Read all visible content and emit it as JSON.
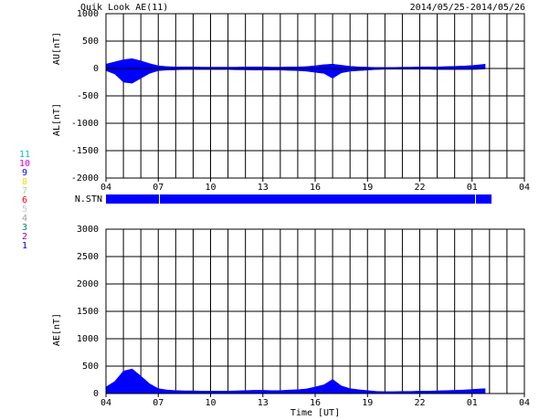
{
  "title": "Quik Look AE(11)",
  "date_range": "2014/05/25-2014/05/26",
  "nstn_label": "N.STN",
  "stations": [
    {
      "label": "11",
      "color": "#00c8c8"
    },
    {
      "label": "10",
      "color": "#e000e0"
    },
    {
      "label": "9",
      "color": "#0000ff"
    },
    {
      "label": "8",
      "color": "#f0e000"
    },
    {
      "label": "7",
      "color": "#90e090"
    },
    {
      "label": "6",
      "color": "#ff0000"
    },
    {
      "label": "5",
      "color": "#c8c8c8"
    },
    {
      "label": "4",
      "color": "#a0a0a0"
    },
    {
      "label": "3",
      "color": "#008080"
    },
    {
      "label": "2",
      "color": "#a000a0"
    },
    {
      "label": "1",
      "color": "#0000c0"
    }
  ],
  "chart_data": [
    {
      "type": "area",
      "ylabels": [
        "AU[nT]",
        "AL[nT]"
      ],
      "x": [
        4,
        4.5,
        5,
        5.5,
        6,
        6.5,
        7,
        7.5,
        8,
        8.5,
        9,
        9.5,
        10,
        10.5,
        11,
        11.5,
        12,
        12.5,
        13,
        13.5,
        14,
        14.5,
        15,
        15.5,
        16,
        16.5,
        17,
        17.5,
        18,
        18.5,
        19,
        19.5,
        20,
        20.5,
        21,
        21.5,
        22,
        22.5,
        23,
        23.5,
        24,
        24.5,
        25,
        25.5,
        25.75
      ],
      "series": [
        {
          "color": "#0000ff",
          "values": [
            80,
            120,
            160,
            180,
            140,
            90,
            50,
            35,
            30,
            30,
            30,
            25,
            25,
            25,
            25,
            25,
            30,
            30,
            30,
            25,
            25,
            30,
            30,
            35,
            50,
            70,
            80,
            60,
            40,
            30,
            25,
            20,
            20,
            20,
            25,
            25,
            30,
            30,
            30,
            35,
            40,
            45,
            55,
            70,
            80
          ]
        },
        {
          "color": "#0000ff",
          "values": [
            -40,
            -100,
            -250,
            -270,
            -180,
            -90,
            -40,
            -30,
            -25,
            -20,
            -20,
            -20,
            -20,
            -20,
            -20,
            -25,
            -25,
            -30,
            -30,
            -30,
            -30,
            -35,
            -40,
            -50,
            -70,
            -90,
            -180,
            -80,
            -50,
            -40,
            -30,
            -20,
            -15,
            -15,
            -15,
            -15,
            -15,
            -15,
            -20,
            -20,
            -20,
            -20,
            -20,
            -15,
            -10
          ]
        }
      ],
      "xlim": [
        4,
        28
      ],
      "xticks": [
        {
          "value": 4,
          "label": "04"
        },
        {
          "value": 7,
          "label": "07"
        },
        {
          "value": 10,
          "label": "10"
        },
        13,
        16,
        19,
        22,
        {
          "value": 25,
          "label": "01"
        },
        {
          "value": 28,
          "label": "04"
        }
      ],
      "ylim": [
        -2000,
        1000
      ],
      "yticks": [
        -2000,
        -1500,
        -1000,
        -500,
        0,
        500,
        1000
      ],
      "grid": true
    },
    {
      "type": "area",
      "ylabel": "AE[nT]",
      "xlabel": "Time [UT]",
      "x": [
        4,
        4.5,
        5,
        5.5,
        6,
        6.5,
        7,
        7.5,
        8,
        8.5,
        9,
        9.5,
        10,
        10.5,
        11,
        11.5,
        12,
        12.5,
        13,
        13.5,
        14,
        14.5,
        15,
        15.5,
        16,
        16.5,
        17,
        17.5,
        18,
        18.5,
        19,
        19.5,
        20,
        20.5,
        21,
        21.5,
        22,
        22.5,
        23,
        23.5,
        24,
        24.5,
        25,
        25.5,
        25.75
      ],
      "series": [
        {
          "color": "#0000ff",
          "values": [
            120,
            220,
            410,
            450,
            320,
            180,
            90,
            65,
            55,
            50,
            50,
            45,
            45,
            45,
            45,
            50,
            55,
            60,
            60,
            55,
            55,
            65,
            70,
            85,
            120,
            160,
            260,
            140,
            90,
            70,
            55,
            40,
            35,
            35,
            40,
            40,
            45,
            45,
            50,
            55,
            60,
            65,
            75,
            85,
            90
          ]
        }
      ],
      "xlim": [
        4,
        28
      ],
      "xticks": [
        {
          "value": 4,
          "label": "04"
        },
        {
          "value": 7,
          "label": "07"
        },
        {
          "value": 10,
          "label": "10"
        },
        13,
        16,
        19,
        22,
        {
          "value": 25,
          "label": "01"
        },
        {
          "value": 28,
          "label": "04"
        }
      ],
      "ylim": [
        0,
        3000
      ],
      "yticks": [
        0,
        500,
        1000,
        1500,
        2000,
        2500,
        3000
      ],
      "grid": true
    }
  ]
}
